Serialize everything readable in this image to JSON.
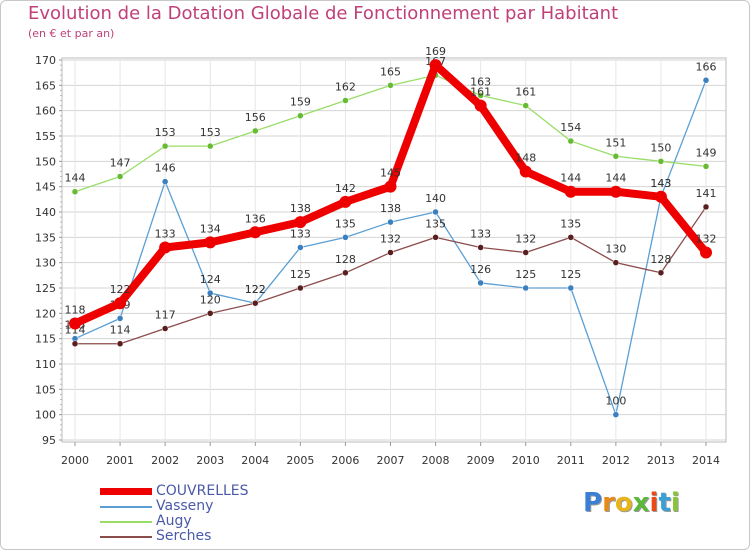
{
  "chart_data": {
    "type": "line",
    "title": "Evolution de la Dotation Globale de Fonctionnement par Habitant",
    "subtitle": "(en € et par an)",
    "x": [
      2000,
      2001,
      2002,
      2003,
      2004,
      2005,
      2006,
      2007,
      2008,
      2009,
      2010,
      2011,
      2012,
      2013,
      2014
    ],
    "ylim": [
      95,
      170
    ],
    "yticks": [
      95,
      100,
      105,
      110,
      115,
      120,
      125,
      130,
      135,
      140,
      145,
      150,
      155,
      160,
      165,
      170
    ],
    "grid": true,
    "series": [
      {
        "name": "Vasseny",
        "color": "#5a9fd4",
        "dot": "#3a7fbf",
        "values": [
          115,
          119,
          146,
          124,
          122,
          133,
          135,
          138,
          140,
          126,
          125,
          125,
          100,
          143,
          166
        ]
      },
      {
        "name": "Augy",
        "color": "#99dd66",
        "dot": "#66bb33",
        "values": [
          144,
          147,
          153,
          153,
          156,
          159,
          162,
          165,
          167,
          163,
          161,
          154,
          151,
          150,
          149
        ]
      },
      {
        "name": "Serches",
        "color": "#8b4c4c",
        "dot": "#5a1e1e",
        "values": [
          114,
          114,
          117,
          120,
          122,
          125,
          128,
          132,
          135,
          133,
          132,
          135,
          130,
          128,
          141
        ]
      },
      {
        "name": "COUVRELLES",
        "color": "#ee0000",
        "dot": "#ee0000",
        "values": [
          118,
          122,
          133,
          134,
          136,
          138,
          142,
          145,
          169,
          161,
          148,
          144,
          144,
          143,
          132
        ]
      }
    ],
    "legend": [
      {
        "name": "COUVRELLES",
        "color": "#ee0000"
      },
      {
        "name": "Vasseny",
        "color": "#5a9fd4"
      },
      {
        "name": "Augy",
        "color": "#99dd66"
      },
      {
        "name": "Serches",
        "color": "#8b4c4c"
      }
    ]
  },
  "logo": {
    "letters": [
      "P",
      "r",
      "o",
      "x",
      "i",
      "t",
      "i"
    ],
    "colors": [
      "#3a7fd4",
      "#e88a1a",
      "#e8b41a",
      "#5cb83a",
      "#e84a1a",
      "#3a9fd4",
      "#8ac43a"
    ]
  }
}
